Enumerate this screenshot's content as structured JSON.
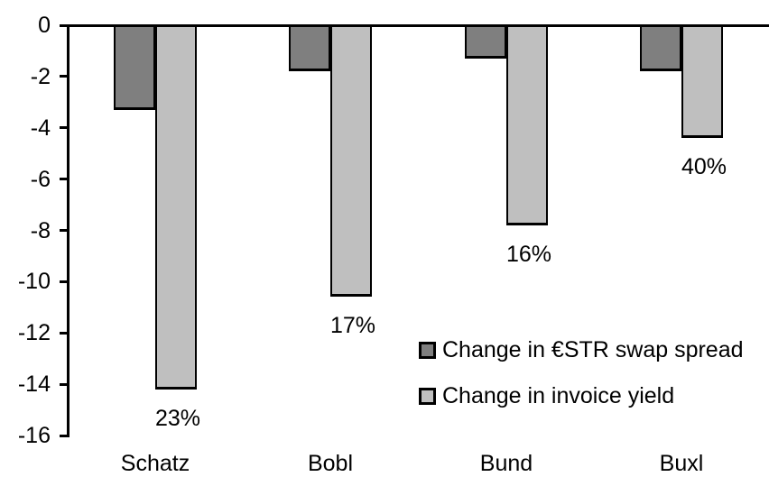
{
  "chart_data": {
    "type": "bar",
    "title": "",
    "xlabel": "",
    "ylabel": "",
    "categories": [
      "Schatz",
      "Bobl",
      "Bund",
      "Buxl"
    ],
    "series": [
      {
        "name": "Change in €STR swap spread",
        "color": "#7F7F7F",
        "values": [
          -3.3,
          -1.8,
          -1.3,
          -1.8
        ]
      },
      {
        "name": "Change in invoice yield",
        "color": "#BFBFBF",
        "values": [
          -14.2,
          -10.6,
          -7.8,
          -4.4
        ]
      }
    ],
    "bar_labels": {
      "attached_to_series": "Change in invoice yield",
      "values": [
        "23%",
        "17%",
        "16%",
        "40%"
      ]
    },
    "ylim": [
      0,
      -16
    ],
    "yticks": [
      0,
      -2,
      -4,
      -6,
      -8,
      -10,
      -12,
      -14,
      -16
    ],
    "grid": false,
    "legend_position": "inside-right",
    "axis_color": "#000000",
    "background_color": "#FFFFFF"
  }
}
